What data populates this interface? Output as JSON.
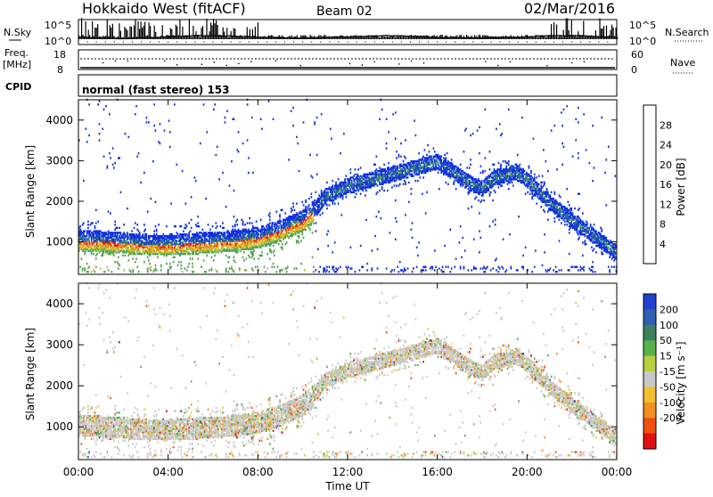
{
  "header": {
    "station": "Hokkaido West (fitACF)",
    "beam": "Beam 02",
    "date": "02/Mar/2016"
  },
  "top_panels": {
    "nsky_label": "N.Sky",
    "nsky_ticks": [
      "10^5",
      "10^0"
    ],
    "nsearch_label": "N.Search",
    "nsearch_ticks": [
      "10^5",
      "10^0"
    ],
    "freq_label_line1": "Freq.",
    "freq_label_line2": "[MHz]",
    "freq_ticks": [
      "18",
      "8"
    ],
    "nave_label": "Nave",
    "nave_ticks": [
      "60",
      "0"
    ],
    "cpid_label": "CPID",
    "cpid_text": "normal (fast stereo) 153"
  },
  "chart_data": [
    {
      "type": "heatmap",
      "name": "power",
      "ylabel": "Slant Range [km]",
      "xlabel": "",
      "xlim": [
        "00:00",
        "24:00"
      ],
      "ylim": [
        200,
        4500
      ],
      "yticks": [
        "1000",
        "2000",
        "3000",
        "4000"
      ],
      "colorbar": {
        "label": "Power [dB]",
        "ticks": [
          "4",
          "8",
          "12",
          "16",
          "20",
          "24",
          "28"
        ],
        "range": [
          0,
          31
        ],
        "colors": [
          "#1030e0",
          "#2060b0",
          "#3c8060",
          "#50a050",
          "#a0c040",
          "#f0c020",
          "#f09010",
          "#f06010",
          "#e01010"
        ]
      }
    },
    {
      "type": "heatmap",
      "name": "velocity",
      "ylabel": "Slant Range [km]",
      "xlabel": "Time UT",
      "xlim": [
        "00:00",
        "24:00"
      ],
      "ylim": [
        200,
        4500
      ],
      "yticks": [
        "1000",
        "2000",
        "3000",
        "4000"
      ],
      "xticks": [
        "00:00",
        "04:00",
        "08:00",
        "12:00",
        "16:00",
        "20:00",
        "00:00"
      ],
      "colorbar": {
        "label": "Velocity [m s⁻¹]",
        "ticks": [
          "200",
          "100",
          "50",
          "15",
          "-15",
          "-50",
          "-100",
          "-200"
        ],
        "colors": [
          "#2040d0",
          "#2f5fb0",
          "#3c8060",
          "#58b048",
          "#b8d040",
          "#c8c8c8",
          "#f0c030",
          "#f09020",
          "#f05010",
          "#e01010"
        ]
      }
    }
  ],
  "scatter_band": {
    "description": "",
    "points": [
      [
        "00:00",
        1000
      ],
      [
        "01:00",
        980
      ],
      [
        "02:00",
        950
      ],
      [
        "03:00",
        900
      ],
      [
        "04:00",
        900
      ],
      [
        "05:00",
        930
      ],
      [
        "06:00",
        960
      ],
      [
        "07:00",
        1000
      ],
      [
        "08:00",
        1080
      ],
      [
        "09:00",
        1250
      ],
      [
        "10:00",
        1500
      ],
      [
        "10:30",
        1750
      ],
      [
        "11:00",
        2100
      ],
      [
        "12:00",
        2350
      ],
      [
        "13:00",
        2500
      ],
      [
        "14:00",
        2650
      ],
      [
        "15:00",
        2800
      ],
      [
        "16:00",
        2950
      ],
      [
        "16:40",
        2700
      ],
      [
        "17:30",
        2400
      ],
      [
        "18:00",
        2300
      ],
      [
        "18:30",
        2550
      ],
      [
        "19:30",
        2700
      ],
      [
        "20:00",
        2500
      ],
      [
        "21:00",
        1950
      ],
      [
        "22:00",
        1500
      ],
      [
        "23:00",
        1100
      ],
      [
        "24:00",
        700
      ]
    ]
  }
}
